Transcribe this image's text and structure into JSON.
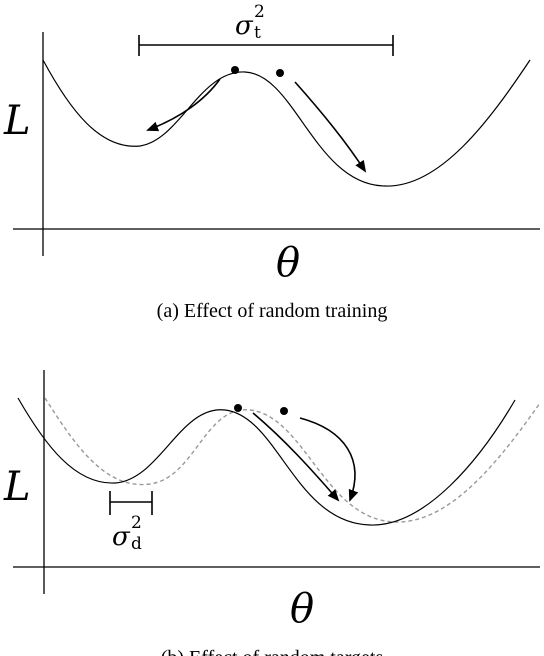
{
  "panel_a": {
    "y_label": "L",
    "x_label": "θ",
    "sigma_symbol": "σ",
    "sigma_superscript": "2",
    "sigma_subscript": "t",
    "caption": "(a)  Effect of random training"
  },
  "panel_b": {
    "y_label": "L",
    "x_label": "θ",
    "sigma_symbol": "σ",
    "sigma_superscript": "2",
    "sigma_subscript": "d",
    "caption": "(b)  Effect of random targets"
  }
}
